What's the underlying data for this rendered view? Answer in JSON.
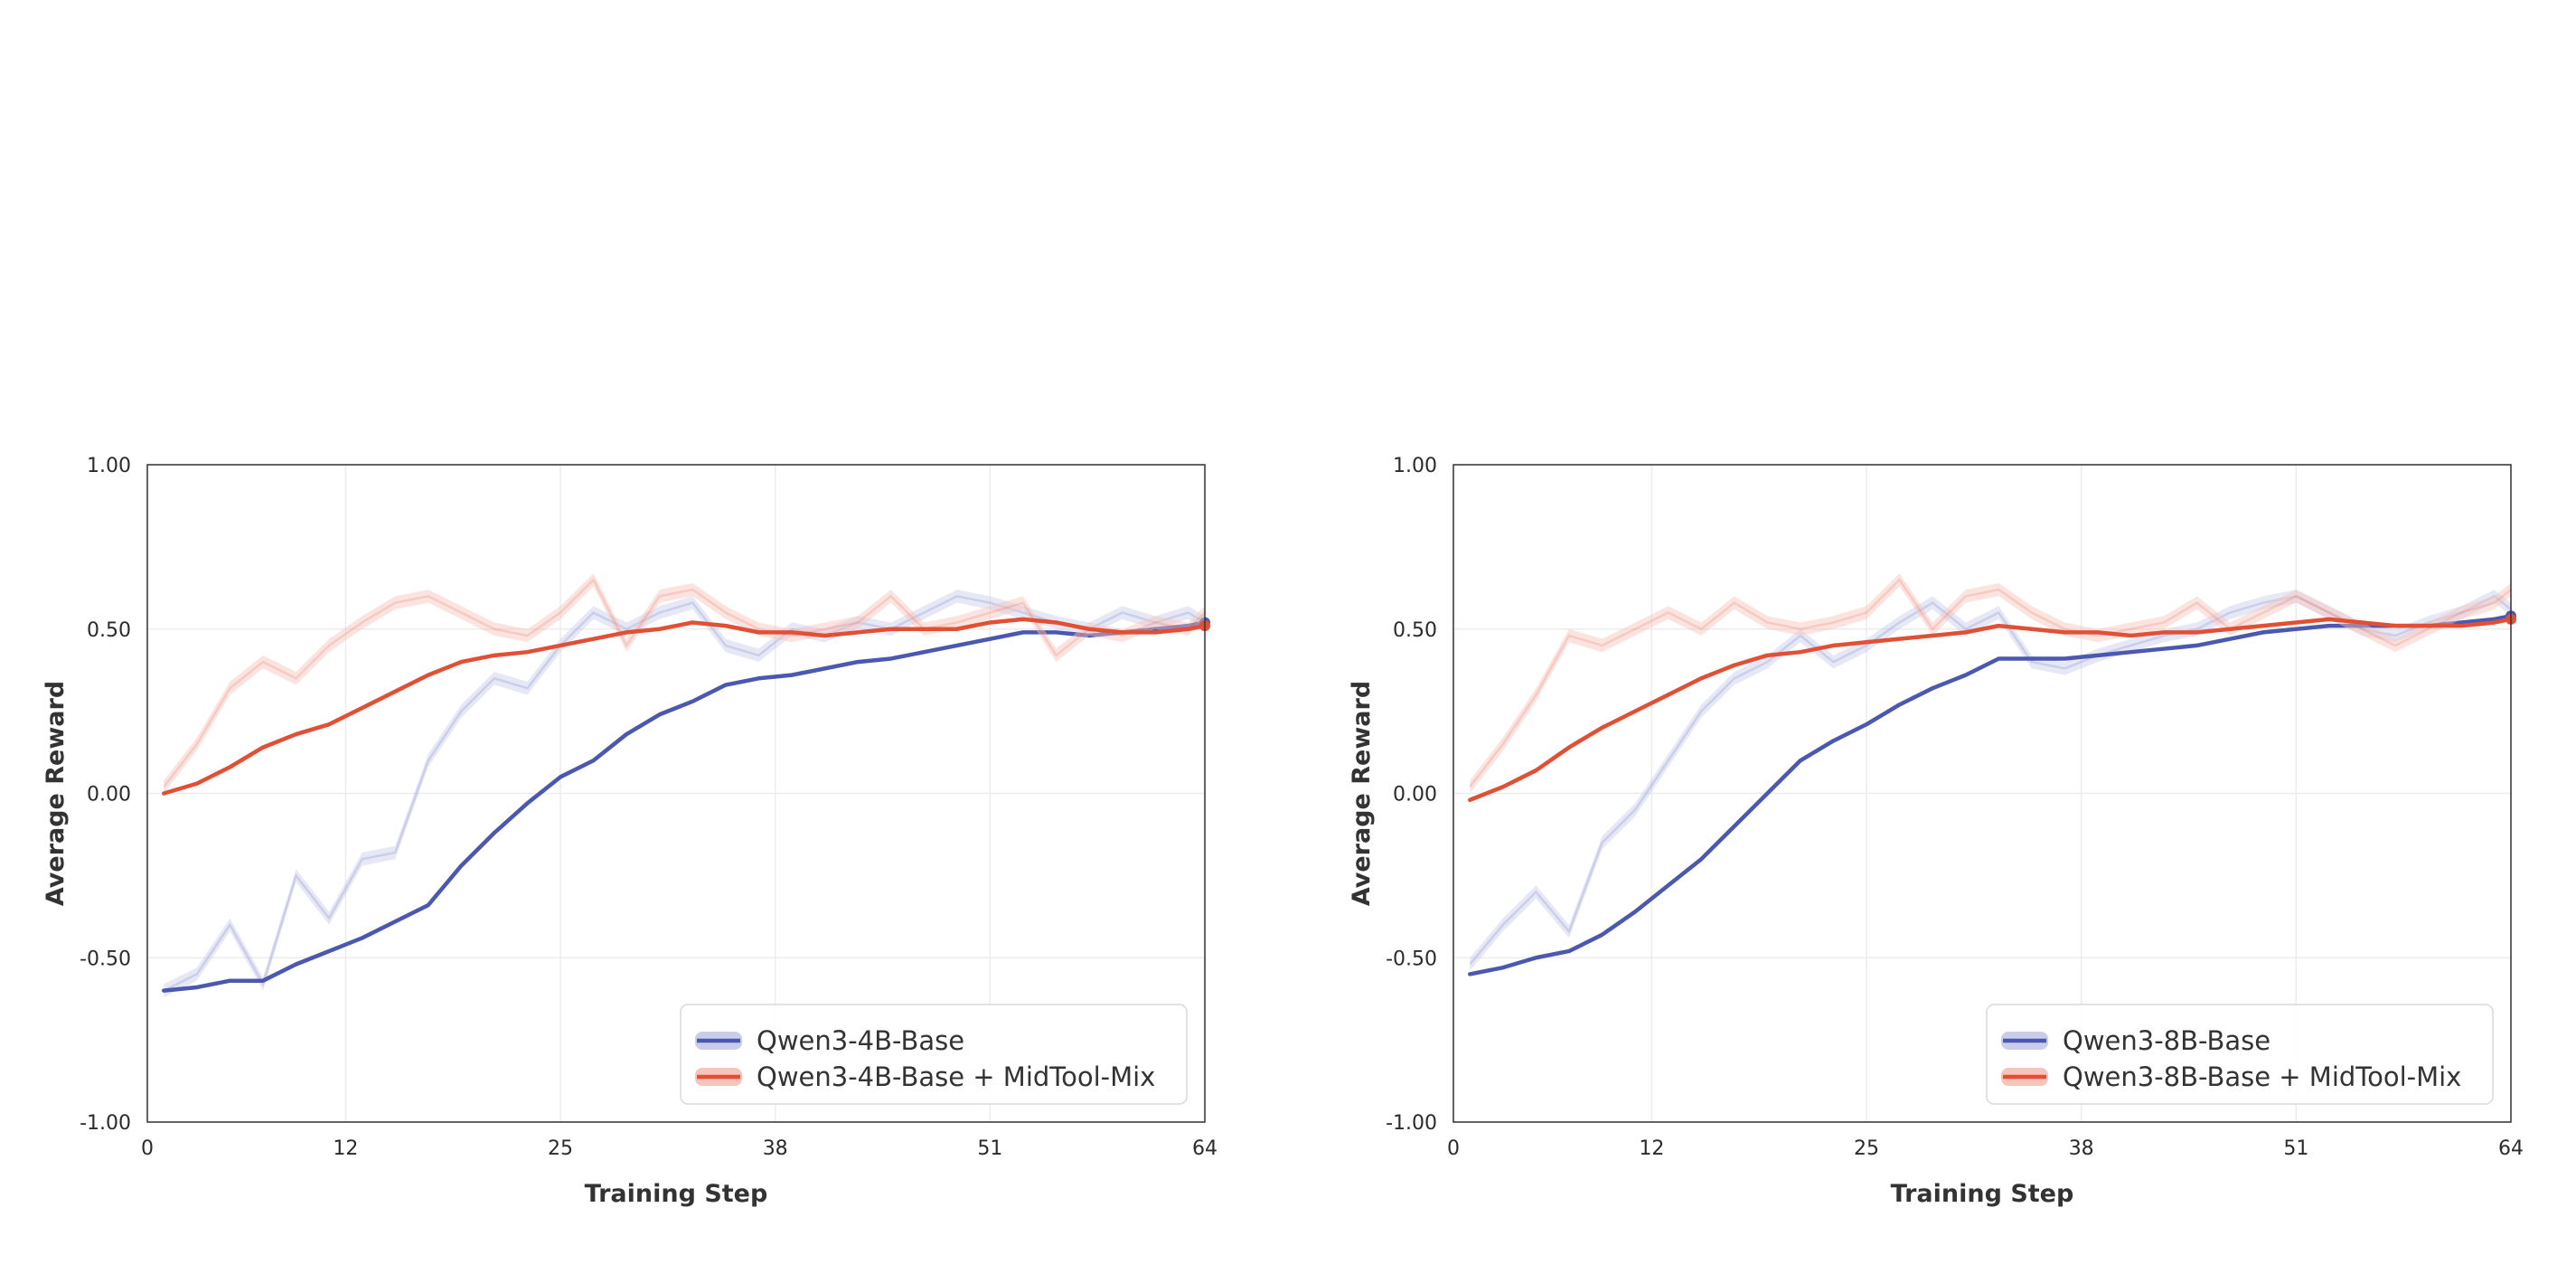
{
  "colors": {
    "base": "#4A58B0",
    "midtool": "#E14F35",
    "base_band": "#C9CDEA",
    "midtool_band": "#F6C4BB",
    "grid": "#ECECEC",
    "frame": "#333333"
  },
  "chart_data": [
    {
      "type": "line",
      "xlabel": "Training Step",
      "ylabel": "Average Reward",
      "xlim": [
        0,
        64
      ],
      "ylim": [
        -1.0,
        1.0
      ],
      "xticks": [
        0,
        12,
        25,
        38,
        51,
        64
      ],
      "yticks": [
        1.0,
        0.5,
        0.0,
        -0.5,
        -1.0
      ],
      "ytick_labels": [
        "1.00",
        "0.50",
        "0.00",
        "-0.50",
        "-1.00"
      ],
      "grid": true,
      "legend_position": "lower-right",
      "series": [
        {
          "name": "Qwen3-4B-Base",
          "color_key": "base",
          "x": [
            1,
            3,
            5,
            7,
            9,
            11,
            13,
            15,
            17,
            19,
            21,
            23,
            25,
            27,
            29,
            31,
            33,
            35,
            37,
            39,
            41,
            43,
            45,
            47,
            49,
            51,
            53,
            55,
            57,
            59,
            61,
            63,
            64
          ],
          "y": [
            -0.6,
            -0.59,
            -0.57,
            -0.57,
            -0.52,
            -0.48,
            -0.44,
            -0.39,
            -0.34,
            -0.22,
            -0.12,
            -0.03,
            0.05,
            0.1,
            0.18,
            0.24,
            0.28,
            0.33,
            0.35,
            0.36,
            0.38,
            0.4,
            0.41,
            0.43,
            0.45,
            0.47,
            0.49,
            0.49,
            0.48,
            0.49,
            0.5,
            0.51,
            0.52
          ],
          "raw": [
            -0.6,
            -0.55,
            -0.4,
            -0.58,
            -0.25,
            -0.38,
            -0.2,
            -0.18,
            0.1,
            0.25,
            0.35,
            0.32,
            0.45,
            0.55,
            0.5,
            0.55,
            0.58,
            0.45,
            0.42,
            0.5,
            0.48,
            0.52,
            0.5,
            0.55,
            0.6,
            0.58,
            0.55,
            0.52,
            0.5,
            0.55,
            0.52,
            0.55,
            0.52
          ]
        },
        {
          "name": "Qwen3-4B-Base + MidTool-Mix",
          "color_key": "midtool",
          "x": [
            1,
            3,
            5,
            7,
            9,
            11,
            13,
            15,
            17,
            19,
            21,
            23,
            25,
            27,
            29,
            31,
            33,
            35,
            37,
            39,
            41,
            43,
            45,
            47,
            49,
            51,
            53,
            55,
            57,
            59,
            61,
            63,
            64
          ],
          "y": [
            0.0,
            0.03,
            0.08,
            0.14,
            0.18,
            0.21,
            0.26,
            0.31,
            0.36,
            0.4,
            0.42,
            0.43,
            0.45,
            0.47,
            0.49,
            0.5,
            0.52,
            0.51,
            0.49,
            0.49,
            0.48,
            0.49,
            0.5,
            0.5,
            0.5,
            0.52,
            0.53,
            0.52,
            0.5,
            0.49,
            0.49,
            0.5,
            0.51
          ],
          "raw": [
            0.02,
            0.15,
            0.32,
            0.4,
            0.35,
            0.45,
            0.52,
            0.58,
            0.6,
            0.55,
            0.5,
            0.48,
            0.55,
            0.65,
            0.45,
            0.6,
            0.62,
            0.55,
            0.5,
            0.48,
            0.5,
            0.52,
            0.6,
            0.5,
            0.52,
            0.55,
            0.58,
            0.42,
            0.5,
            0.48,
            0.52,
            0.5,
            0.55
          ]
        }
      ]
    },
    {
      "type": "line",
      "xlabel": "Training Step",
      "ylabel": "Average Reward",
      "xlim": [
        0,
        64
      ],
      "ylim": [
        -1.0,
        1.0
      ],
      "xticks": [
        0,
        12,
        25,
        38,
        51,
        64
      ],
      "yticks": [
        1.0,
        0.5,
        0.0,
        -0.5,
        -1.0
      ],
      "ytick_labels": [
        "1.00",
        "0.50",
        "0.00",
        "-0.50",
        "-1.00"
      ],
      "grid": true,
      "legend_position": "lower-right",
      "series": [
        {
          "name": "Qwen3-8B-Base",
          "color_key": "base",
          "x": [
            1,
            3,
            5,
            7,
            9,
            11,
            13,
            15,
            17,
            19,
            21,
            23,
            25,
            27,
            29,
            31,
            33,
            35,
            37,
            39,
            41,
            43,
            45,
            47,
            49,
            51,
            53,
            55,
            57,
            59,
            61,
            63,
            64
          ],
          "y": [
            -0.55,
            -0.53,
            -0.5,
            -0.48,
            -0.43,
            -0.36,
            -0.28,
            -0.2,
            -0.1,
            0.0,
            0.1,
            0.16,
            0.21,
            0.27,
            0.32,
            0.36,
            0.41,
            0.41,
            0.41,
            0.42,
            0.43,
            0.44,
            0.45,
            0.47,
            0.49,
            0.5,
            0.51,
            0.51,
            0.51,
            0.51,
            0.52,
            0.53,
            0.54
          ],
          "raw": [
            -0.52,
            -0.4,
            -0.3,
            -0.42,
            -0.15,
            -0.05,
            0.1,
            0.25,
            0.35,
            0.4,
            0.48,
            0.4,
            0.45,
            0.52,
            0.58,
            0.5,
            0.55,
            0.4,
            0.38,
            0.42,
            0.45,
            0.48,
            0.5,
            0.55,
            0.58,
            0.6,
            0.55,
            0.5,
            0.48,
            0.52,
            0.55,
            0.6,
            0.56
          ]
        },
        {
          "name": "Qwen3-8B-Base + MidTool-Mix",
          "color_key": "midtool",
          "x": [
            1,
            3,
            5,
            7,
            9,
            11,
            13,
            15,
            17,
            19,
            21,
            23,
            25,
            27,
            29,
            31,
            33,
            35,
            37,
            39,
            41,
            43,
            45,
            47,
            49,
            51,
            53,
            55,
            57,
            59,
            61,
            63,
            64
          ],
          "y": [
            -0.02,
            0.02,
            0.07,
            0.14,
            0.2,
            0.25,
            0.3,
            0.35,
            0.39,
            0.42,
            0.43,
            0.45,
            0.46,
            0.47,
            0.48,
            0.49,
            0.51,
            0.5,
            0.49,
            0.49,
            0.48,
            0.49,
            0.49,
            0.5,
            0.51,
            0.52,
            0.53,
            0.52,
            0.51,
            0.51,
            0.51,
            0.52,
            0.53
          ],
          "raw": [
            0.02,
            0.15,
            0.3,
            0.48,
            0.45,
            0.5,
            0.55,
            0.5,
            0.58,
            0.52,
            0.5,
            0.52,
            0.55,
            0.65,
            0.5,
            0.6,
            0.62,
            0.55,
            0.5,
            0.48,
            0.5,
            0.52,
            0.58,
            0.5,
            0.55,
            0.6,
            0.55,
            0.5,
            0.45,
            0.5,
            0.55,
            0.58,
            0.62
          ]
        }
      ]
    }
  ]
}
